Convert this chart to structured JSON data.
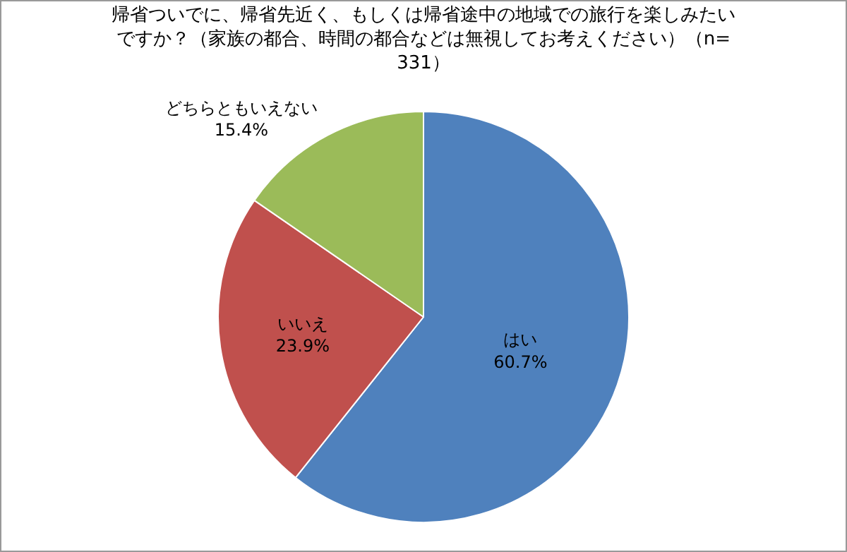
{
  "chart_data": {
    "type": "pie",
    "title": "帰省ついでに、帰省先近く、もしくは帰省途中の地域での旅行を楽しみたいですか？（家族の都合、時間の都合などは無視してお考えください）（n=331）",
    "categories": [
      "はい",
      "いいえ",
      "どちらともいえない"
    ],
    "values": [
      60.7,
      23.9,
      15.4
    ],
    "value_labels": [
      "60.7%",
      "23.9%",
      "15.4%"
    ],
    "colors": [
      "#4f81bd",
      "#c0504d",
      "#9bbb59"
    ],
    "legend": false
  }
}
